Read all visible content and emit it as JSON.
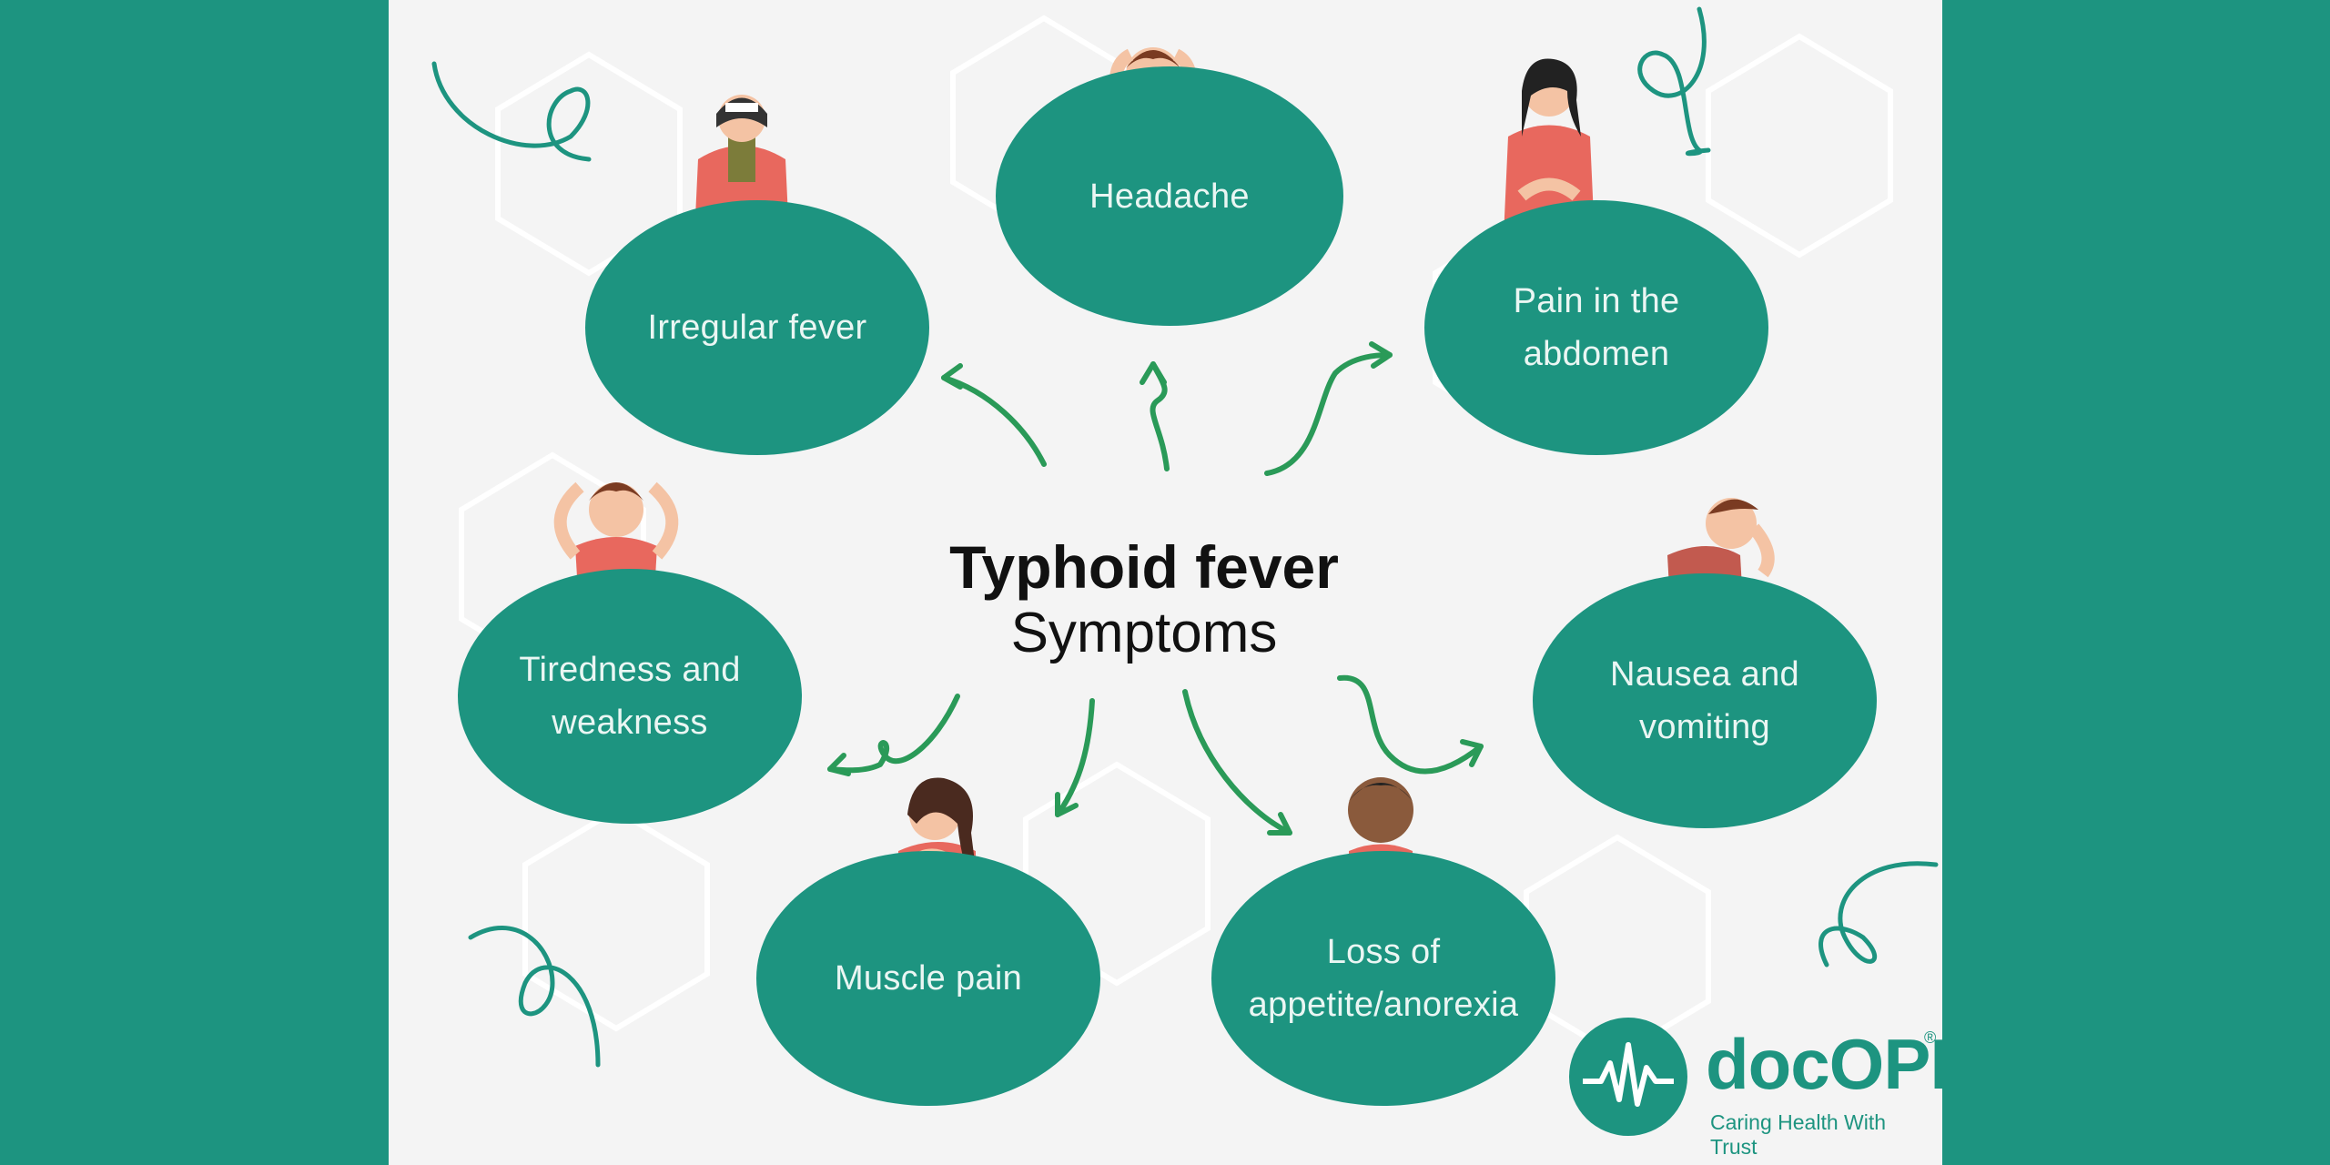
{
  "title": {
    "main": "Typhoid fever",
    "sub": "Symptoms"
  },
  "symptoms": {
    "headache": "Headache",
    "irregular_fever": "Irregular fever",
    "pain_abdomen": "Pain in the\nabdomen",
    "tiredness": "Tiredness and\nweakness",
    "nausea": "Nausea and\nvomiting",
    "muscle_pain": "Muscle pain",
    "appetite": "Loss of\nappetite/anorexia"
  },
  "logo": {
    "brand": "docOPD",
    "tagline": "Caring Health With Trust",
    "registered": "®"
  },
  "colors": {
    "accent": "#1d9480",
    "figure_shirt": "#e8685e",
    "arrow": "#2a9a58",
    "background": "#f4f4f4"
  }
}
